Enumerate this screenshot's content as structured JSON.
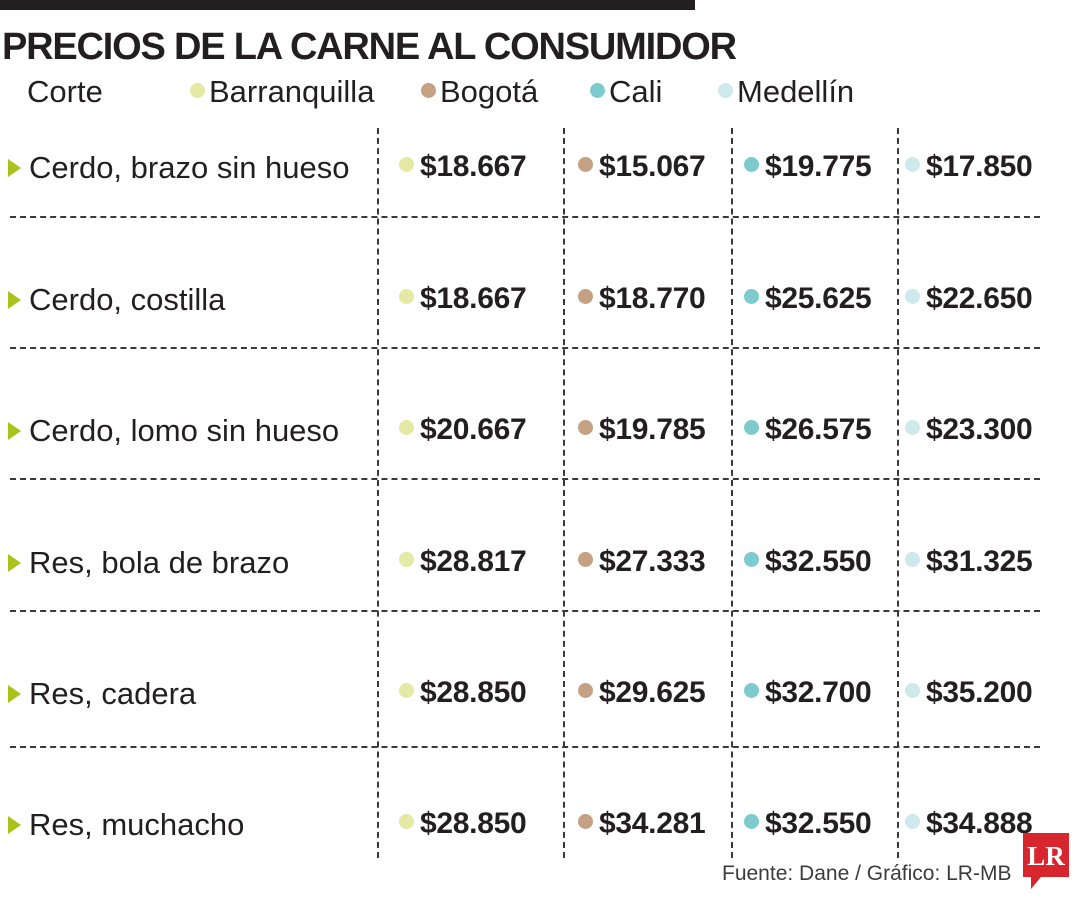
{
  "chart_data": {
    "type": "table",
    "title": "PRECIOS DE LA CARNE AL CONSUMIDOR",
    "row_header": "Corte",
    "series": [
      {
        "name": "Barranquilla",
        "color": "#e4e9a4",
        "values": [
          "$18.667",
          "$18.667",
          "$20.667",
          "$28.817",
          "$28.850",
          "$28.850"
        ]
      },
      {
        "name": "Bogotá",
        "color": "#c4a183",
        "values": [
          "$15.067",
          "$18.770",
          "$19.785",
          "$27.333",
          "$29.625",
          "$34.281"
        ]
      },
      {
        "name": "Cali",
        "color": "#7ecbcf",
        "values": [
          "$19.775",
          "$25.625",
          "$26.575",
          "$32.550",
          "$32.700",
          "$32.550"
        ]
      },
      {
        "name": "Medellín",
        "color": "#cde9ec",
        "values": [
          "$17.850",
          "$22.650",
          "$23.300",
          "$31.325",
          "$35.200",
          "$34.888"
        ]
      }
    ],
    "categories": [
      "Cerdo, brazo sin hueso",
      "Cerdo, costilla",
      "Cerdo, lomo sin hueso",
      "Res, bola de brazo",
      "Res, cadera",
      "Res, muchacho"
    ],
    "marker_color": "#a9c31a"
  },
  "footer": {
    "source": "Fuente: Dane / Gráfico: LR-MB",
    "logo_text": "LR",
    "logo_color": "#d8262e"
  }
}
